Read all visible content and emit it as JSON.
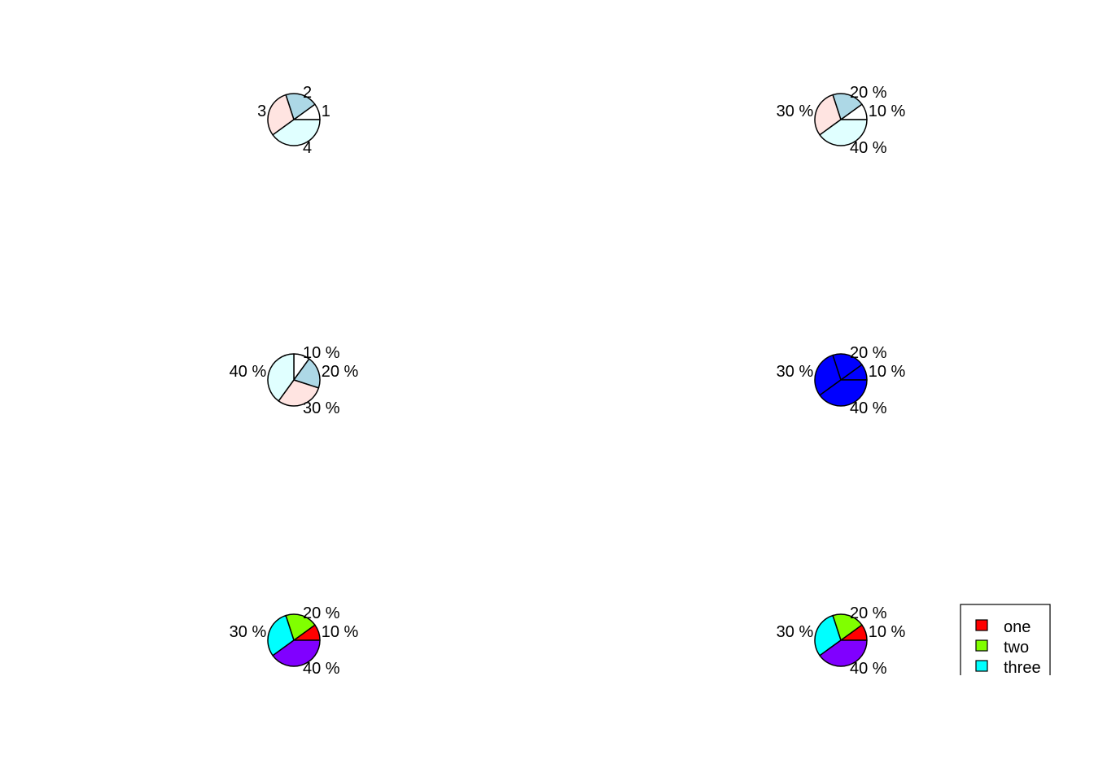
{
  "chart_data": [
    {
      "type": "pie",
      "values": [
        10,
        20,
        30,
        40
      ],
      "labels": [
        "1",
        "2",
        "3",
        "4"
      ],
      "colors": [
        "#FFFFFF",
        "#ADD8E6",
        "#FFE4E1",
        "#E0FFFF"
      ],
      "direction": "counterclockwise",
      "start_angle_deg": 0
    },
    {
      "type": "pie",
      "values": [
        10,
        20,
        30,
        40
      ],
      "labels": [
        "10 %",
        "20 %",
        "30 %",
        "40 %"
      ],
      "colors": [
        "#FFFFFF",
        "#ADD8E6",
        "#FFE4E1",
        "#E0FFFF"
      ],
      "direction": "counterclockwise",
      "start_angle_deg": 0
    },
    {
      "type": "pie",
      "values": [
        10,
        20,
        30,
        40
      ],
      "labels": [
        "10 %",
        "20 %",
        "30 %",
        "40 %"
      ],
      "colors": [
        "#FFFFFF",
        "#ADD8E6",
        "#FFE4E1",
        "#E0FFFF"
      ],
      "direction": "clockwise",
      "start_angle_deg": 90
    },
    {
      "type": "pie",
      "values": [
        10,
        20,
        30,
        40
      ],
      "labels": [
        "10 %",
        "20 %",
        "30 %",
        "40 %"
      ],
      "colors": [
        "#0000FF",
        "#0000FF",
        "#0000FF",
        "#0000FF"
      ],
      "direction": "counterclockwise",
      "start_angle_deg": 0
    },
    {
      "type": "pie",
      "values": [
        10,
        20,
        30,
        40
      ],
      "labels": [
        "10 %",
        "20 %",
        "30 %",
        "40 %"
      ],
      "colors": [
        "#FF0000",
        "#80FF00",
        "#00FFFF",
        "#8000FF"
      ],
      "direction": "counterclockwise",
      "start_angle_deg": 0
    },
    {
      "type": "pie",
      "values": [
        10,
        20,
        30,
        40
      ],
      "labels": [
        "10 %",
        "20 %",
        "30 %",
        "40 %"
      ],
      "colors": [
        "#FF0000",
        "#80FF00",
        "#00FFFF",
        "#8000FF"
      ],
      "direction": "counterclockwise",
      "start_angle_deg": 0,
      "legend": {
        "placement": "right, clipped at bottom",
        "entries": [
          "one",
          "two",
          "three"
        ],
        "colors": [
          "#FF0000",
          "#80FF00",
          "#00FFFF"
        ]
      }
    }
  ]
}
